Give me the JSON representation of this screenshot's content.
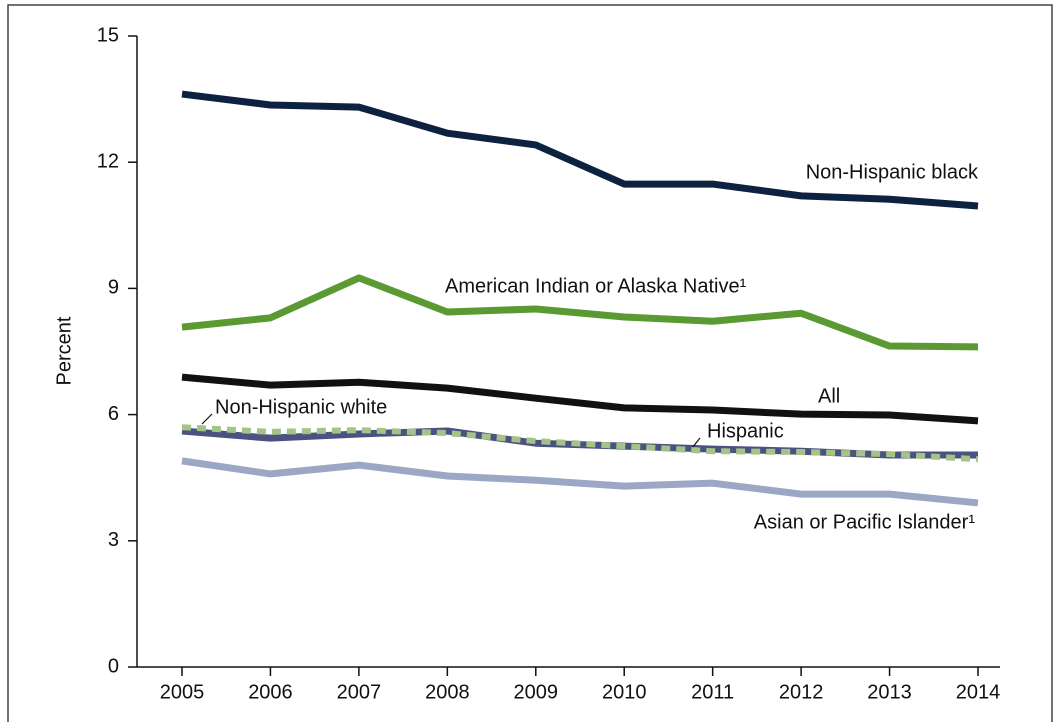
{
  "chart_data": {
    "type": "line",
    "ylabel": "Percent",
    "x": [
      2005,
      2006,
      2007,
      2008,
      2009,
      2010,
      2011,
      2012,
      2013,
      2014
    ],
    "xlim": [
      2005,
      2014
    ],
    "xticks": [
      2005,
      2006,
      2007,
      2008,
      2009,
      2010,
      2011,
      2012,
      2013,
      2014
    ],
    "ylim": [
      0,
      15
    ],
    "yticks": [
      0,
      3,
      6,
      9,
      12,
      15
    ],
    "series": [
      {
        "name": "Non-Hispanic black",
        "color": "#0d2240",
        "values": [
          13.62,
          13.36,
          13.31,
          12.69,
          12.41,
          11.48,
          11.48,
          11.2,
          11.12,
          10.96
        ]
      },
      {
        "name": "American Indian or Alaska Native¹",
        "color": "#5b9a33",
        "values": [
          8.08,
          8.3,
          9.25,
          8.44,
          8.51,
          8.32,
          8.22,
          8.41,
          7.63,
          7.61
        ]
      },
      {
        "name": "All",
        "color": "#111111",
        "values": [
          6.89,
          6.7,
          6.77,
          6.63,
          6.39,
          6.16,
          6.11,
          6.01,
          5.99,
          5.85
        ]
      },
      {
        "name": "Hispanic",
        "color": "#4b5180",
        "values": [
          5.61,
          5.44,
          5.54,
          5.61,
          5.32,
          5.25,
          5.18,
          5.13,
          5.04,
          5.04
        ]
      },
      {
        "name": "Non-Hispanic white",
        "color": "#a3c486",
        "style": "dashed",
        "values": [
          5.7,
          5.59,
          5.63,
          5.56,
          5.37,
          5.25,
          5.13,
          5.11,
          5.06,
          4.94
        ]
      },
      {
        "name": "Asian or Pacific Islander¹",
        "color": "#9ba7c5",
        "values": [
          4.9,
          4.59,
          4.8,
          4.54,
          4.44,
          4.3,
          4.37,
          4.11,
          4.11,
          3.9
        ]
      }
    ]
  }
}
